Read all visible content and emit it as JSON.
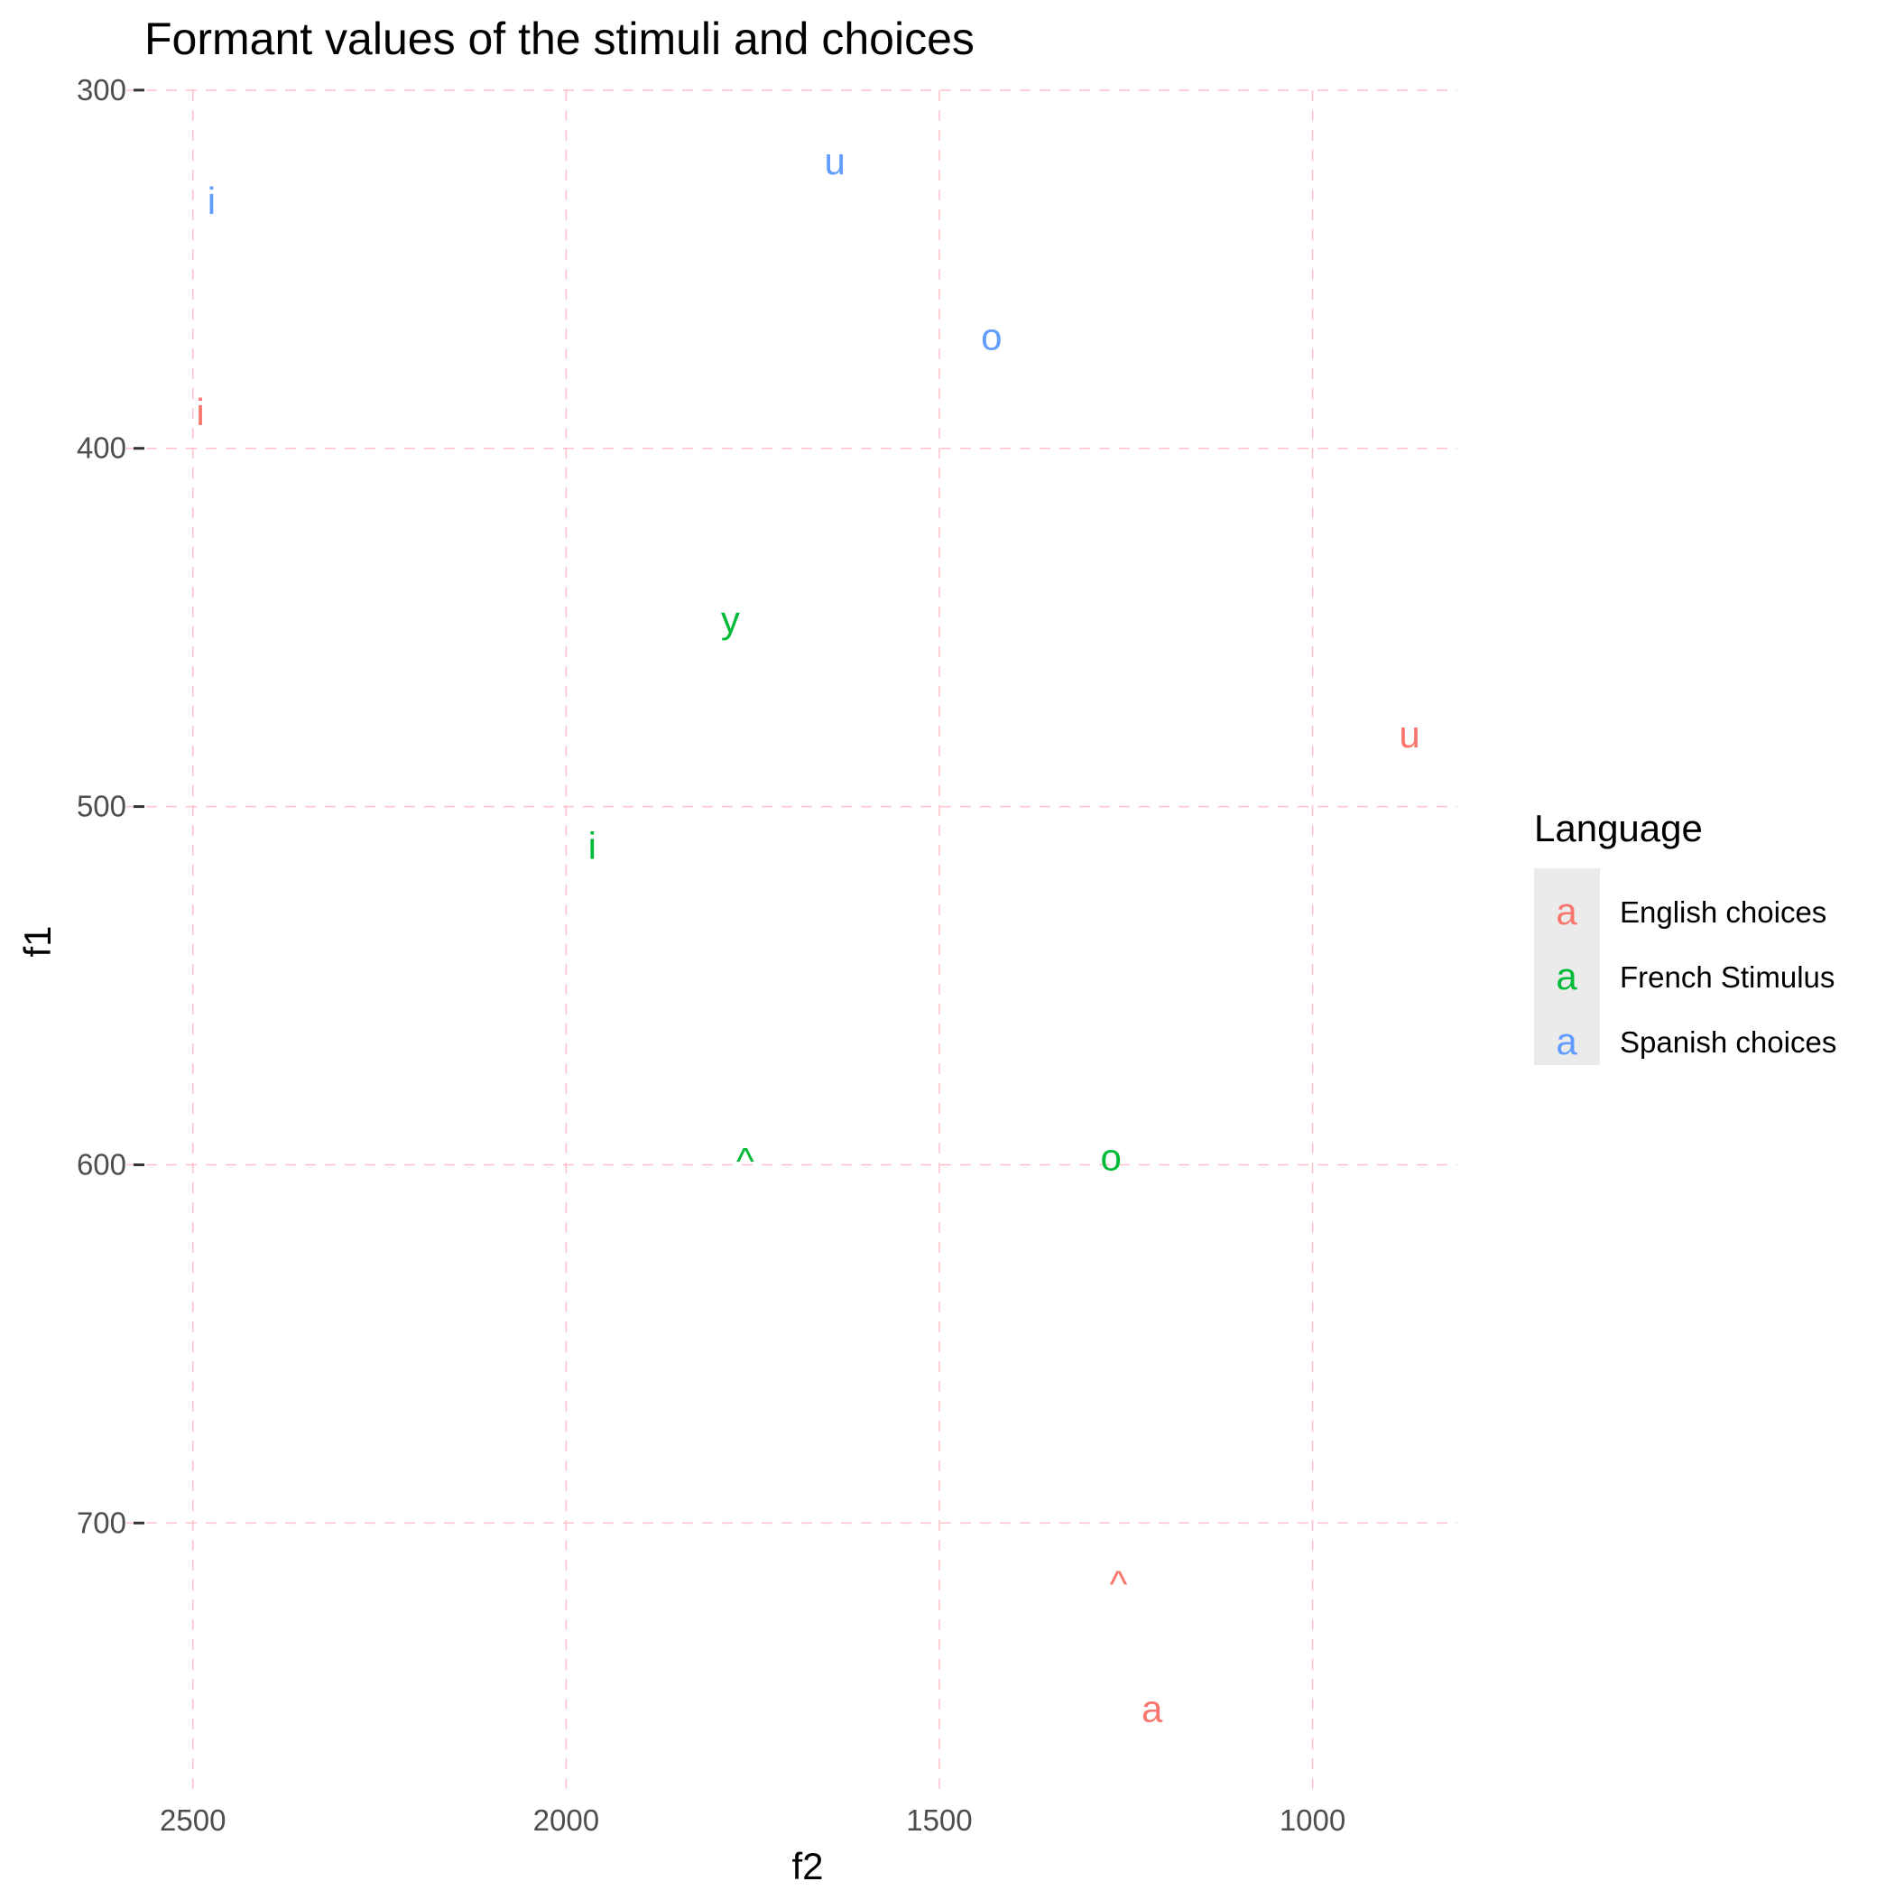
{
  "chart_data": {
    "type": "scatter",
    "title": "Formant values of the stimuli and choices",
    "xlabel": "f2",
    "ylabel": "f1",
    "x_reversed": true,
    "y_reversed": true,
    "xlim": [
      2500,
      800
    ],
    "ylim": [
      300,
      770
    ],
    "x_ticks": [
      2500,
      2000,
      1500,
      1000
    ],
    "x_tick_labels": [
      "2500",
      "2000",
      "1500",
      "1000"
    ],
    "y_ticks": [
      300,
      400,
      500,
      600,
      700
    ],
    "y_tick_labels": [
      "300",
      "400",
      "500",
      "600",
      "700"
    ],
    "grid": true,
    "grid_style": "dashed",
    "grid_color": "#FFC0CB",
    "background": "#FFFFFF",
    "point_glyph": "text",
    "legend": {
      "title": "Language",
      "position": "right",
      "key_glyph": "a",
      "entries": [
        "English choices",
        "French Stimulus",
        "Spanish choices"
      ]
    },
    "series": [
      {
        "name": "English choices",
        "color": "#F8766D",
        "points": [
          {
            "label": "i",
            "x": 2490,
            "y": 390
          },
          {
            "label": "u",
            "x": 870,
            "y": 480
          },
          {
            "label": "^",
            "x": 1260,
            "y": 717
          },
          {
            "label": "a",
            "x": 1215,
            "y": 752
          }
        ]
      },
      {
        "name": "French Stimulus",
        "color": "#00BA38",
        "points": [
          {
            "label": "y",
            "x": 1780,
            "y": 448
          },
          {
            "label": "i",
            "x": 1965,
            "y": 511
          },
          {
            "label": "^",
            "x": 1760,
            "y": 599
          },
          {
            "label": "o",
            "x": 1270,
            "y": 598
          }
        ]
      },
      {
        "name": "Spanish choices",
        "color": "#619CFF",
        "points": [
          {
            "label": "i",
            "x": 2475,
            "y": 331
          },
          {
            "label": "u",
            "x": 1640,
            "y": 320
          },
          {
            "label": "o",
            "x": 1430,
            "y": 369
          }
        ]
      }
    ]
  }
}
